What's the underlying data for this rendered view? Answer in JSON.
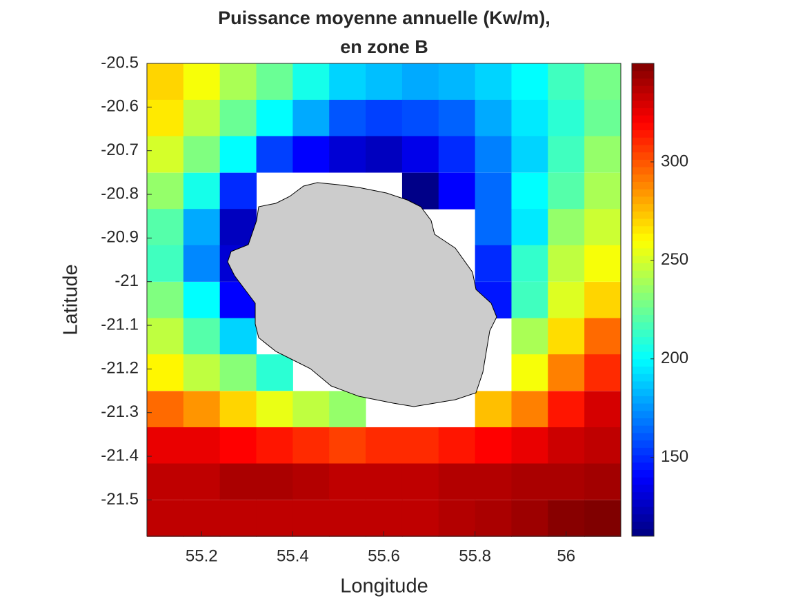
{
  "chart_data": {
    "type": "heatmap",
    "title": [
      "Puissance moyenne annuelle (Kw/m),",
      "en zone B"
    ],
    "xlabel": "Longitude",
    "ylabel": "Latitude",
    "colormap": "jet",
    "x": [
      55.12,
      55.2,
      55.28,
      55.36,
      55.44,
      55.52,
      55.6,
      55.68,
      55.76,
      55.84,
      55.92,
      56,
      56.08
    ],
    "y": [
      -20.542,
      -20.625,
      -20.708,
      -20.792,
      -20.875,
      -20.958,
      -21.042,
      -21.125,
      -21.208,
      -21.292,
      -21.375,
      -21.458,
      -21.542
    ],
    "values": [
      [
        270,
        258,
        240,
        225,
        205,
        190,
        185,
        180,
        183,
        190,
        200,
        215,
        228
      ],
      [
        265,
        245,
        225,
        200,
        180,
        160,
        155,
        158,
        163,
        180,
        195,
        210,
        225
      ],
      [
        250,
        230,
        200,
        155,
        140,
        130,
        125,
        135,
        150,
        170,
        190,
        215,
        235
      ],
      [
        235,
        205,
        150,
        null,
        null,
        null,
        null,
        112,
        140,
        165,
        200,
        220,
        240
      ],
      [
        220,
        180,
        125,
        null,
        null,
        null,
        null,
        null,
        null,
        165,
        195,
        235,
        248
      ],
      [
        215,
        172,
        130,
        null,
        null,
        null,
        null,
        null,
        null,
        150,
        212,
        245,
        258
      ],
      [
        230,
        200,
        140,
        null,
        null,
        null,
        null,
        null,
        null,
        145,
        215,
        252,
        270
      ],
      [
        245,
        220,
        190,
        null,
        null,
        null,
        null,
        null,
        null,
        null,
        240,
        268,
        295
      ],
      [
        262,
        245,
        232,
        210,
        null,
        null,
        null,
        null,
        null,
        null,
        258,
        290,
        310
      ],
      [
        295,
        285,
        270,
        255,
        245,
        235,
        null,
        null,
        null,
        275,
        290,
        315,
        330
      ],
      [
        325,
        325,
        320,
        315,
        310,
        305,
        310,
        310,
        315,
        320,
        325,
        332,
        335
      ],
      [
        335,
        335,
        340,
        340,
        338,
        335,
        335,
        335,
        338,
        338,
        340,
        340,
        342
      ],
      [
        335,
        335,
        335,
        335,
        335,
        335,
        335,
        335,
        338,
        340,
        343,
        348,
        350
      ]
    ],
    "xlim": [
      55.08,
      56.12
    ],
    "ylim": [
      -21.583,
      -20.5
    ],
    "xticks": [
      55.2,
      55.4,
      55.6,
      55.8,
      56
    ],
    "yticks": [
      -20.5,
      -20.6,
      -20.7,
      -20.8,
      -20.9,
      -21,
      -21.1,
      -21.2,
      -21.3,
      -21.4,
      -21.5
    ],
    "clim": [
      110,
      350
    ],
    "cticks": [
      150,
      200,
      250,
      300
    ]
  }
}
